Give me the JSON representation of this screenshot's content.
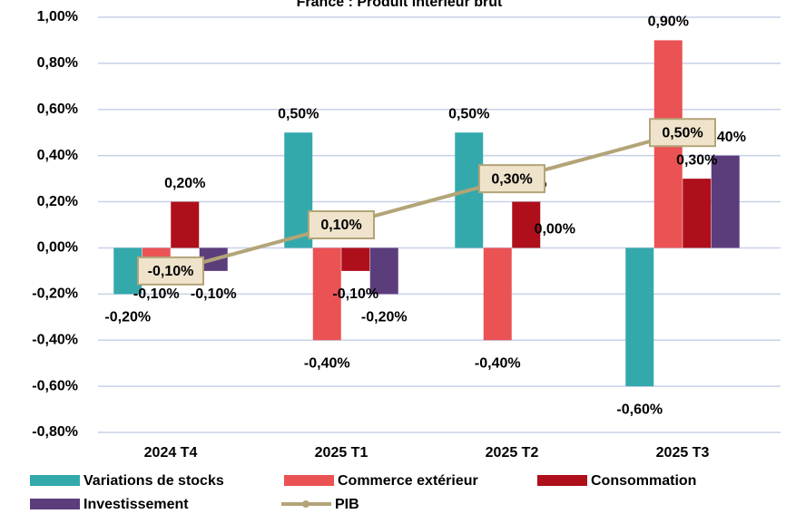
{
  "chart_data": {
    "type": "bar",
    "title": "France : Produit intérieur brut",
    "categories": [
      "2024 T4",
      "2025 T1",
      "2025 T2",
      "2025 T3"
    ],
    "series": [
      {
        "name": "Variations de stocks",
        "color": "#33a9ac",
        "values": [
          -0.2,
          0.5,
          0.5,
          -0.6
        ],
        "value_labels": [
          "-0,20%",
          "0,50%",
          "0,50%",
          "-0,60%"
        ]
      },
      {
        "name": "Commerce extérieur",
        "color": "#ea5254",
        "values": [
          -0.1,
          -0.4,
          -0.4,
          0.9
        ],
        "value_labels": [
          "-0,10%",
          "-0,40%",
          "-0,40%",
          "0,90%"
        ]
      },
      {
        "name": "Consommation",
        "color": "#ae0f1b",
        "values": [
          0.2,
          -0.1,
          0.2,
          0.3
        ],
        "value_labels": [
          "0,20%",
          "-0,10%",
          "0,20%",
          "0,30%"
        ]
      },
      {
        "name": "Investissement",
        "color": "#5c3d7c",
        "values": [
          -0.1,
          -0.2,
          0.0,
          0.4
        ],
        "value_labels": [
          "-0,10%",
          "-0,20%",
          "0,00%",
          "0,40%"
        ]
      },
      {
        "name": "PIB",
        "type": "line",
        "color": "#b3a478",
        "values": [
          -0.1,
          0.1,
          0.3,
          0.5
        ],
        "value_labels": [
          "-0,10%",
          "0,10%",
          "0,30%",
          "0,50%"
        ]
      }
    ],
    "ylim": [
      -0.8,
      1.0
    ],
    "yticks": [
      {
        "value": -0.8,
        "label": "-0,80%"
      },
      {
        "value": -0.6,
        "label": "-0,60%"
      },
      {
        "value": -0.4,
        "label": "-0,40%"
      },
      {
        "value": -0.2,
        "label": "-0,20%"
      },
      {
        "value": 0,
        "label": "0,00%"
      },
      {
        "value": 0.2,
        "label": "0,20%"
      },
      {
        "value": 0.4,
        "label": "0,40%"
      },
      {
        "value": 0.6,
        "label": "0,60%"
      },
      {
        "value": 0.8,
        "label": "0,80%"
      },
      {
        "value": 1.0,
        "label": "1,00%"
      }
    ],
    "grid": true,
    "legend": "bottom"
  }
}
